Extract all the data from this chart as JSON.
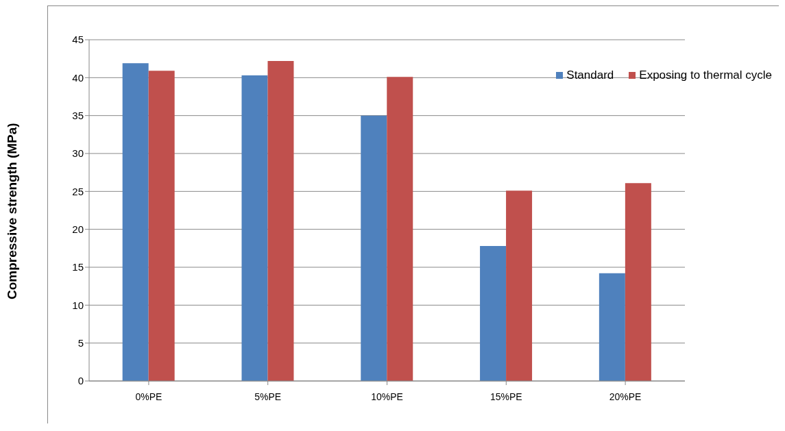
{
  "chart_data": {
    "type": "bar",
    "ylabel": "Compressive strength (MPa)",
    "categories": [
      "0%PE",
      "5%PE",
      "10%PE",
      "15%PE",
      "20%PE"
    ],
    "series": [
      {
        "name": "Standard",
        "color": "#4f81bd",
        "values": [
          41.9,
          40.3,
          35.0,
          17.8,
          14.2
        ]
      },
      {
        "name": "Exposing to thermal cycle",
        "color": "#c0504d",
        "values": [
          40.9,
          42.2,
          40.1,
          25.1,
          26.1
        ]
      }
    ],
    "ylim": [
      0,
      45
    ],
    "yticks": [
      0,
      5,
      10,
      15,
      20,
      25,
      30,
      35,
      40,
      45
    ],
    "grid": "y",
    "legend": "top right"
  }
}
